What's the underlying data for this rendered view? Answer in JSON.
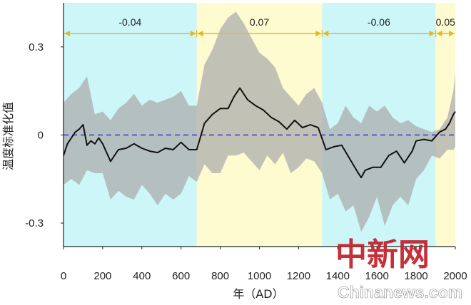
{
  "chart_data": {
    "type": "line",
    "xlabel": "年（AD）",
    "ylabel": "温度标准化值",
    "xlim": [
      0,
      2000
    ],
    "ylim": [
      -0.38,
      0.45
    ],
    "x_ticks": [
      "0",
      "200",
      "400",
      "600",
      "800",
      "1000",
      "1200",
      "1400",
      "1600",
      "1800",
      "2000"
    ],
    "y_ticks": [
      {
        "value": 0.3,
        "label": "0.3"
      },
      {
        "value": 0,
        "label": "0"
      },
      {
        "value": -0.3,
        "label": "-0.3"
      }
    ],
    "reference_line": {
      "value": 0,
      "style": "dashed",
      "color": "#2b2bd6"
    },
    "periods": [
      {
        "start": 0,
        "end": 680,
        "label": "-0.04",
        "color": "#cdf6f8"
      },
      {
        "start": 680,
        "end": 1320,
        "label": "0.07",
        "color": "#fdfbcf"
      },
      {
        "start": 1320,
        "end": 1900,
        "label": "-0.06",
        "color": "#cdf6f8"
      },
      {
        "start": 1900,
        "end": 2000,
        "label": "0.05",
        "color": "#fdfbcf"
      }
    ],
    "series": [
      {
        "color": "#111111",
        "x": [
          0,
          10,
          20,
          40,
          60,
          80,
          100,
          120,
          140,
          160,
          180,
          200,
          240,
          280,
          320,
          360,
          400,
          440,
          480,
          520,
          560,
          600,
          640,
          680,
          720,
          760,
          800,
          840,
          870,
          900,
          940,
          980,
          1020,
          1060,
          1100,
          1140,
          1180,
          1220,
          1260,
          1300,
          1340,
          1380,
          1420,
          1460,
          1500,
          1520,
          1540,
          1580,
          1620,
          1660,
          1700,
          1740,
          1780,
          1800,
          1840,
          1880,
          1920,
          1950,
          1970,
          1990,
          2000
        ],
        "y": [
          -0.07,
          -0.05,
          -0.03,
          -0.01,
          0.01,
          0.02,
          0.035,
          -0.035,
          -0.02,
          -0.03,
          -0.01,
          -0.03,
          -0.09,
          -0.05,
          -0.045,
          -0.03,
          -0.045,
          -0.055,
          -0.06,
          -0.045,
          -0.05,
          -0.025,
          -0.05,
          -0.05,
          0.04,
          0.07,
          0.09,
          0.09,
          0.13,
          0.16,
          0.12,
          0.1,
          0.085,
          0.06,
          0.045,
          0.02,
          0.05,
          0.025,
          0.035,
          0.025,
          -0.05,
          -0.04,
          -0.035,
          -0.08,
          -0.125,
          -0.145,
          -0.12,
          -0.11,
          -0.11,
          -0.07,
          -0.055,
          -0.095,
          -0.055,
          -0.02,
          -0.015,
          -0.02,
          0.01,
          0.02,
          0.04,
          0.07,
          0.08
        ]
      }
    ],
    "uncertainty_band": {
      "color": "#aaaaaa",
      "x": [
        0,
        40,
        80,
        120,
        160,
        200,
        240,
        280,
        320,
        360,
        400,
        440,
        480,
        520,
        560,
        600,
        640,
        680,
        720,
        760,
        800,
        840,
        880,
        920,
        960,
        1000,
        1040,
        1080,
        1120,
        1160,
        1200,
        1240,
        1280,
        1320,
        1360,
        1400,
        1440,
        1480,
        1520,
        1560,
        1600,
        1640,
        1680,
        1720,
        1760,
        1800,
        1840,
        1880,
        1920,
        1960,
        1990,
        2000
      ],
      "upper": [
        0.11,
        0.14,
        0.16,
        0.2,
        0.07,
        0.08,
        0.05,
        0.09,
        0.11,
        0.14,
        0.1,
        0.12,
        0.11,
        0.12,
        0.13,
        0.15,
        0.1,
        0.1,
        0.24,
        0.29,
        0.36,
        0.4,
        0.42,
        0.38,
        0.33,
        0.28,
        0.26,
        0.23,
        0.16,
        0.13,
        0.1,
        0.14,
        0.16,
        0.11,
        0.02,
        0.04,
        0.1,
        0.06,
        0.04,
        0.1,
        0.08,
        0.1,
        0.06,
        0.04,
        0.05,
        0.03,
        0.02,
        0.01,
        0.02,
        0.06,
        0.15,
        0.21
      ],
      "lower": [
        -0.17,
        -0.15,
        -0.17,
        -0.12,
        -0.13,
        -0.13,
        -0.22,
        -0.19,
        -0.21,
        -0.22,
        -0.17,
        -0.2,
        -0.24,
        -0.2,
        -0.22,
        -0.2,
        -0.14,
        -0.16,
        -0.1,
        -0.13,
        -0.13,
        -0.07,
        -0.07,
        -0.06,
        -0.09,
        -0.12,
        -0.07,
        -0.1,
        -0.06,
        -0.13,
        -0.11,
        -0.08,
        -0.09,
        -0.13,
        -0.22,
        -0.2,
        -0.26,
        -0.24,
        -0.33,
        -0.28,
        -0.21,
        -0.31,
        -0.24,
        -0.21,
        -0.24,
        -0.15,
        -0.12,
        -0.07,
        -0.08,
        -0.05,
        -0.05,
        -0.04
      ]
    }
  },
  "watermark": {
    "chinese": "中新网",
    "english": "Chinanews.com"
  }
}
